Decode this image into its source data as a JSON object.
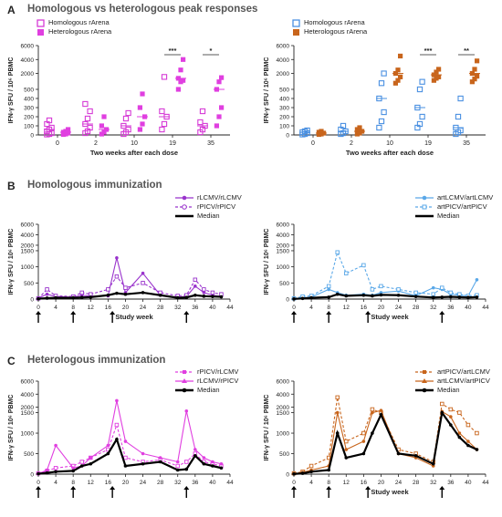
{
  "panels": {
    "A": {
      "letter": "A",
      "title": "Homologous vs heterologous peak responses"
    },
    "B": {
      "letter": "B",
      "title": "Homologous immunization"
    },
    "C": {
      "letter": "C",
      "title": "Heterologous immunization"
    }
  },
  "colors": {
    "magenta": "#d63bd6",
    "purple": "#9933cc",
    "blue": "#4a90e2",
    "lightblue": "#5aa8e8",
    "orange": "#c8651c",
    "black": "#000000"
  },
  "chart_data": [
    {
      "id": "A-left",
      "type": "scatter",
      "ylabel": "IFN-γ SFU / 10⁶ PBMC",
      "xlabel": "Two weeks after each dose",
      "categories": [
        "0",
        "2",
        "10",
        "19",
        "35"
      ],
      "y_ticks": [
        "0",
        "100",
        "200",
        "300",
        "400",
        "500",
        "2000",
        "4000",
        "6000"
      ],
      "significance": [
        {
          "between": "19",
          "label": "***"
        },
        {
          "between": "35",
          "label": "*"
        }
      ],
      "series": [
        {
          "name": "Homologous rArena",
          "marker": "open-square",
          "color": "#d63bd6",
          "values": [
            [
              5,
              10,
              20,
              40,
              60,
              80,
              120,
              160
            ],
            [
              20,
              40,
              80,
              120,
              180,
              260,
              340
            ],
            [
              10,
              30,
              60,
              100,
              180,
              240
            ],
            [
              60,
              120,
              200,
              260,
              1500
            ],
            [
              30,
              60,
              100,
              140,
              260
            ]
          ]
        },
        {
          "name": "Heterologous rArena",
          "marker": "filled-square",
          "color": "#e03fe0",
          "values": [
            [
              5,
              10,
              20,
              30,
              40,
              60
            ],
            [
              10,
              30,
              60,
              100,
              200
            ],
            [
              60,
              120,
              200,
              300,
              450
            ],
            [
              500,
              800,
              1000,
              1300,
              2500,
              4000
            ],
            [
              100,
              200,
              300,
              500,
              800,
              1400
            ]
          ]
        }
      ]
    },
    {
      "id": "A-right",
      "type": "scatter",
      "ylabel": "IFN-γ SFU / 10⁶ PBMC",
      "xlabel": "Two weeks after each dose",
      "categories": [
        "0",
        "2",
        "10",
        "19",
        "35"
      ],
      "y_ticks": [
        "0",
        "100",
        "200",
        "300",
        "400",
        "500",
        "2000",
        "4000",
        "6000"
      ],
      "significance": [
        {
          "between": "19",
          "label": "***"
        },
        {
          "between": "35",
          "label": "**"
        }
      ],
      "series": [
        {
          "name": "Homologous rArena",
          "marker": "open-square",
          "color": "#4a90e2",
          "values": [
            [
              5,
              10,
              20,
              30,
              40,
              50
            ],
            [
              10,
              20,
              40,
              60,
              100
            ],
            [
              80,
              150,
              250,
              400,
              600,
              2000
            ],
            [
              80,
              120,
              200,
              300,
              500,
              800
            ],
            [
              10,
              30,
              50,
              80,
              200,
              400
            ]
          ]
        },
        {
          "name": "Heterologous rArena",
          "marker": "filled-square",
          "color": "#c8651c",
          "values": [
            [
              5,
              10,
              20,
              30,
              40
            ],
            [
              10,
              20,
              40,
              60,
              80
            ],
            [
              600,
              1000,
              1500,
              2000,
              2500,
              4500
            ],
            [
              1000,
              1300,
              1500,
              1800,
              2200,
              2600
            ],
            [
              800,
              1200,
              1600,
              2000,
              2600,
              3800
            ]
          ]
        }
      ]
    },
    {
      "id": "B-left",
      "type": "line",
      "ylabel": "IFN-γ SFU / 10⁶ PBMC",
      "xlabel": "Study week",
      "x_ticks": [
        0,
        4,
        8,
        12,
        16,
        20,
        24,
        28,
        32,
        36,
        40,
        44
      ],
      "y_ticks": [
        0,
        500,
        1000,
        1500,
        2000,
        4000,
        6000
      ],
      "dose_weeks": [
        0,
        8,
        17,
        34
      ],
      "series": [
        {
          "name": "rLCMV/rLCMV",
          "style": "solid",
          "color": "#9933cc",
          "x": [
            0,
            2,
            4,
            8,
            10,
            12,
            16,
            18,
            20,
            24,
            28,
            32,
            34,
            36,
            38,
            40,
            42
          ],
          "values": [
            30,
            150,
            80,
            60,
            120,
            90,
            100,
            1280,
            200,
            800,
            120,
            60,
            80,
            400,
            200,
            120,
            80
          ]
        },
        {
          "name": "rPICV/rPICV",
          "style": "dashed",
          "color": "#9933cc",
          "x": [
            0,
            2,
            4,
            8,
            10,
            12,
            16,
            18,
            20,
            24,
            28,
            32,
            34,
            36,
            38,
            40,
            42
          ],
          "values": [
            20,
            300,
            100,
            80,
            200,
            150,
            300,
            700,
            350,
            500,
            200,
            100,
            120,
            600,
            300,
            200,
            150
          ]
        },
        {
          "name": "Median",
          "style": "bold",
          "color": "#000000",
          "x": [
            0,
            2,
            4,
            8,
            10,
            12,
            16,
            18,
            20,
            24,
            28,
            32,
            34,
            36,
            38,
            40,
            42
          ],
          "values": [
            10,
            30,
            40,
            40,
            50,
            60,
            120,
            180,
            150,
            200,
            120,
            40,
            50,
            120,
            90,
            80,
            70
          ]
        }
      ]
    },
    {
      "id": "B-right",
      "type": "line",
      "ylabel": "IFN-γ SFU / 10⁶ PBMC",
      "xlabel": "Study week",
      "x_ticks": [
        0,
        4,
        8,
        12,
        16,
        20,
        24,
        28,
        32,
        36,
        40,
        44
      ],
      "y_ticks": [
        0,
        500,
        1000,
        1500,
        2000,
        4000,
        6000
      ],
      "dose_weeks": [
        0,
        8,
        17,
        34
      ],
      "series": [
        {
          "name": "artLCMV/artLCMV",
          "style": "solid",
          "color": "#5aa8e8",
          "x": [
            0,
            2,
            4,
            8,
            10,
            12,
            16,
            18,
            20,
            24,
            28,
            32,
            34,
            36,
            38,
            40,
            42
          ],
          "values": [
            10,
            40,
            60,
            300,
            200,
            120,
            150,
            120,
            200,
            250,
            100,
            350,
            300,
            150,
            120,
            100,
            600
          ]
        },
        {
          "name": "artPICV/artPICV",
          "style": "dashed",
          "color": "#5aa8e8",
          "x": [
            0,
            2,
            4,
            8,
            10,
            12,
            16,
            18,
            20,
            24,
            28,
            32,
            34,
            36,
            38,
            40,
            42
          ],
          "values": [
            20,
            80,
            100,
            400,
            1450,
            800,
            1050,
            300,
            400,
            300,
            200,
            150,
            350,
            200,
            150,
            100,
            120
          ]
        },
        {
          "name": "Median",
          "style": "bold",
          "color": "#000000",
          "x": [
            0,
            2,
            4,
            8,
            10,
            12,
            16,
            18,
            20,
            24,
            28,
            32,
            34,
            36,
            38,
            40,
            42
          ],
          "values": [
            5,
            20,
            40,
            60,
            150,
            100,
            120,
            100,
            130,
            120,
            80,
            50,
            60,
            70,
            60,
            50,
            60
          ]
        }
      ]
    },
    {
      "id": "C-left",
      "type": "line",
      "ylabel": "IFN-γ SFU / 10⁶ PBMC",
      "xlabel": "",
      "x_ticks": [
        0,
        4,
        8,
        12,
        16,
        20,
        24,
        28,
        32,
        36,
        40,
        44
      ],
      "y_ticks": [
        0,
        500,
        1000,
        1500,
        2000,
        4000,
        6000
      ],
      "dose_weeks": [
        0,
        8,
        17,
        34
      ],
      "series": [
        {
          "name": "rPICV/rLCMV",
          "style": "dashed",
          "color": "#e03fe0",
          "x": [
            0,
            2,
            4,
            8,
            10,
            12,
            16,
            18,
            20,
            24,
            28,
            32,
            34,
            36,
            38,
            40,
            42
          ],
          "values": [
            20,
            80,
            150,
            200,
            300,
            400,
            600,
            1200,
            400,
            300,
            350,
            200,
            300,
            500,
            300,
            250,
            200
          ]
        },
        {
          "name": "rLCMV/rPICV",
          "style": "solid",
          "color": "#e03fe0",
          "x": [
            0,
            2,
            4,
            8,
            10,
            12,
            16,
            18,
            20,
            24,
            28,
            32,
            34,
            36,
            38,
            40,
            42
          ],
          "values": [
            10,
            100,
            700,
            150,
            200,
            400,
            700,
            3000,
            800,
            500,
            400,
            300,
            1650,
            600,
            400,
            300,
            250
          ]
        },
        {
          "name": "Median",
          "style": "bold",
          "color": "#000000",
          "x": [
            0,
            2,
            4,
            8,
            10,
            12,
            16,
            18,
            20,
            24,
            28,
            32,
            34,
            36,
            38,
            40,
            42
          ],
          "values": [
            10,
            30,
            60,
            80,
            200,
            250,
            500,
            850,
            200,
            250,
            300,
            100,
            120,
            450,
            250,
            200,
            150
          ]
        }
      ]
    },
    {
      "id": "C-right",
      "type": "line",
      "ylabel": "IFN-γ SFU / 10⁶ PBMC",
      "xlabel": "Study week",
      "x_ticks": [
        0,
        4,
        8,
        12,
        16,
        20,
        24,
        28,
        32,
        36,
        40,
        44
      ],
      "y_ticks": [
        0,
        500,
        1000,
        1500,
        2000,
        4000,
        6000
      ],
      "dose_weeks": [
        0,
        8,
        17,
        34
      ],
      "series": [
        {
          "name": "artPICV/artLCMV",
          "style": "dashed",
          "color": "#c8651c",
          "x": [
            0,
            2,
            4,
            8,
            10,
            12,
            16,
            18,
            20,
            24,
            28,
            32,
            34,
            36,
            38,
            40,
            42
          ],
          "values": [
            20,
            60,
            200,
            400,
            3500,
            800,
            1000,
            1800,
            1500,
            600,
            500,
            300,
            2500,
            1800,
            1500,
            1200,
            1000
          ]
        },
        {
          "name": "artLCMV/artPICV",
          "style": "solid",
          "color": "#c8651c",
          "x": [
            0,
            2,
            4,
            8,
            10,
            12,
            16,
            18,
            20,
            24,
            28,
            32,
            34,
            36,
            38,
            40,
            42
          ],
          "values": [
            10,
            40,
            100,
            200,
            1500,
            600,
            800,
            1500,
            1700,
            500,
            400,
            200,
            1600,
            1400,
            1000,
            800,
            600
          ]
        },
        {
          "name": "Median",
          "style": "bold",
          "color": "#000000",
          "x": [
            0,
            2,
            4,
            8,
            10,
            12,
            16,
            18,
            20,
            24,
            28,
            32,
            34,
            36,
            38,
            40,
            42
          ],
          "values": [
            5,
            20,
            60,
            100,
            1000,
            400,
            500,
            1000,
            1450,
            500,
            450,
            250,
            1500,
            1200,
            900,
            700,
            600
          ]
        }
      ]
    }
  ]
}
